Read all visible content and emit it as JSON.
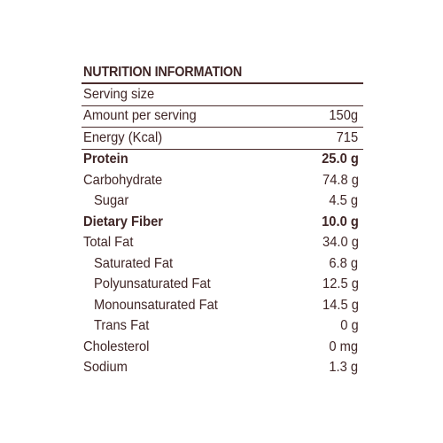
{
  "title": "NUTRITION INFORMATION",
  "rows": [
    {
      "label": "Serving size",
      "value": ""
    },
    {
      "label": "Amount per serving",
      "value": "150g"
    },
    {
      "label": "Energy (Kcal)",
      "value": "715"
    },
    {
      "label": "Protein",
      "value": "25.0 g"
    },
    {
      "label": "Carbohydrate",
      "value": "74.8 g"
    },
    {
      "label": "Sugar",
      "value": "4.5 g"
    },
    {
      "label": "Dietary Fiber",
      "value": "10.0 g"
    },
    {
      "label": "Total Fat",
      "value": "34.0 g"
    },
    {
      "label": "Saturated Fat",
      "value": "6.8 g"
    },
    {
      "label": "Polyunsaturated Fat",
      "value": "12.5 g"
    },
    {
      "label": "Monounsaturated Fat",
      "value": "14.5 g"
    },
    {
      "label": "Trans Fat",
      "value": "0 g"
    },
    {
      "label": "Cholesterol",
      "value": "0 mg"
    },
    {
      "label": "Sodium",
      "value": "1.3 g"
    }
  ]
}
